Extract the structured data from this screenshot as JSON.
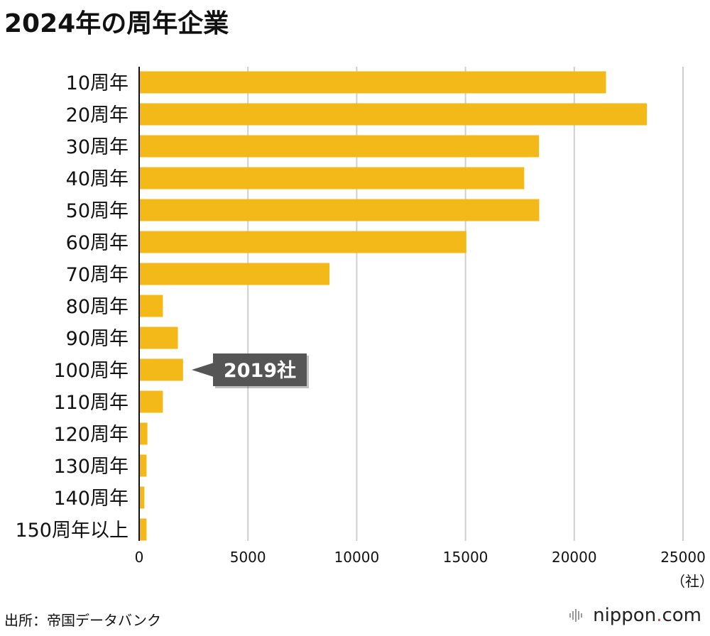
{
  "title": "2024年の周年企業",
  "source": "出所：帝国データバンク",
  "logo": {
    "pre": "nippon",
    "dot": ".",
    "post": "com"
  },
  "colors": {
    "bar": "#F2B918",
    "grid": "#cfcfcf",
    "axis": "#111111",
    "callout": "#555555"
  },
  "chart_data": {
    "type": "bar",
    "orientation": "horizontal",
    "title": "2024年の周年企業",
    "categories": [
      "10周年",
      "20周年",
      "30周年",
      "40周年",
      "50周年",
      "60周年",
      "70周年",
      "80周年",
      "90周年",
      "100周年",
      "110周年",
      "120周年",
      "130周年",
      "140周年",
      "150周年以上"
    ],
    "values": [
      21460,
      23340,
      18380,
      17700,
      18390,
      15040,
      8750,
      1090,
      1780,
      2019,
      1090,
      380,
      340,
      240,
      340
    ],
    "xlim": [
      0,
      25000
    ],
    "xticks": [
      0,
      5000,
      10000,
      15000,
      20000,
      25000
    ],
    "unit_label": "（社）",
    "grid": true,
    "annotation": {
      "category": "100周年",
      "text": "2019社"
    }
  }
}
